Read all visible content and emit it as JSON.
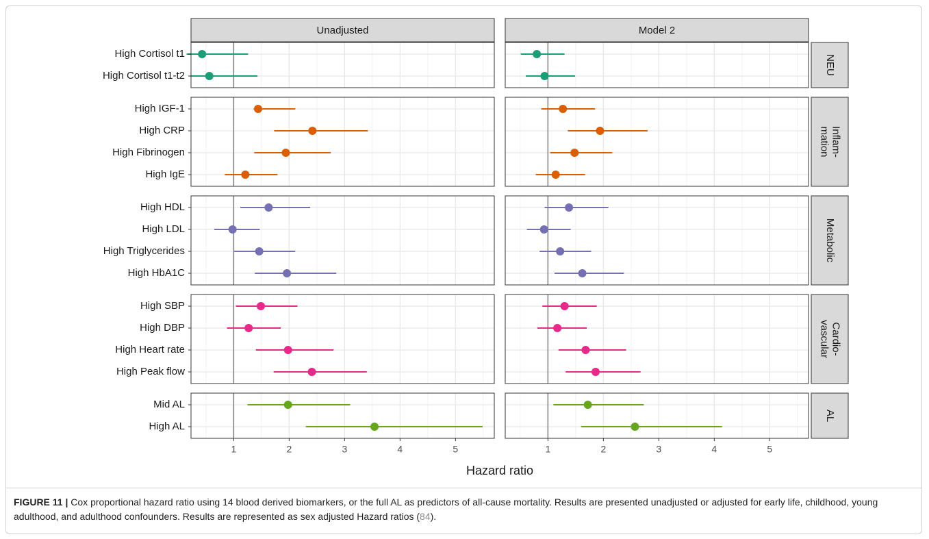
{
  "chart_data": {
    "type": "forest",
    "panels": [
      "Unadjusted",
      "Model 2"
    ],
    "xlabel": "Hazard ratio",
    "xlim": [
      0.23,
      5.7
    ],
    "xticks": [
      1,
      2,
      3,
      4,
      5
    ],
    "reference_line": 1,
    "grid": true,
    "groups": [
      {
        "label": [
          "NEU"
        ],
        "color": "#1b9e77",
        "categories": [
          "High Cortisol t1",
          "High Cortisol t1-t2"
        ],
        "estimates": [
          {
            "values": [
              0.43,
              0.56
            ],
            "lower": [
              0.15,
              0.22
            ],
            "upper": [
              1.26,
              1.43
            ]
          },
          {
            "values": [
              0.8,
              0.94
            ],
            "lower": [
              0.51,
              0.6
            ],
            "upper": [
              1.3,
              1.49
            ]
          }
        ]
      },
      {
        "label": [
          "Inflam-",
          "mation"
        ],
        "color": "#d95f02",
        "categories": [
          "High IGF-1",
          "High CRP",
          "High Fibrinogen",
          "High IgE"
        ],
        "estimates": [
          {
            "values": [
              1.44,
              2.42,
              1.94,
              1.21
            ],
            "lower": [
              1.36,
              1.73,
              1.37,
              0.84
            ],
            "upper": [
              2.11,
              3.42,
              2.75,
              1.79
            ]
          },
          {
            "values": [
              1.27,
              1.94,
              1.48,
              1.14
            ],
            "lower": [
              0.88,
              1.36,
              1.04,
              0.78
            ],
            "upper": [
              1.85,
              2.8,
              2.16,
              1.67
            ]
          }
        ]
      },
      {
        "label": [
          "Metabolic"
        ],
        "color": "#7570b3",
        "categories": [
          "High HDL",
          "High LDL",
          "High Triglycerides",
          "High HbA1C"
        ],
        "estimates": [
          {
            "values": [
              1.63,
              0.98,
              1.46,
              1.96
            ],
            "lower": [
              1.12,
              0.65,
              1.01,
              1.38
            ],
            "upper": [
              2.38,
              1.47,
              2.11,
              2.85
            ]
          },
          {
            "values": [
              1.38,
              0.93,
              1.22,
              1.62
            ],
            "lower": [
              0.94,
              0.62,
              0.85,
              1.12
            ],
            "upper": [
              2.09,
              1.41,
              1.78,
              2.37
            ]
          }
        ]
      },
      {
        "label": [
          "Cardio-",
          "vascular"
        ],
        "color": "#e7298a",
        "categories": [
          "High SBP",
          "High DBP",
          "High Heart rate",
          "High Peak flow"
        ],
        "estimates": [
          {
            "values": [
              1.49,
              1.27,
              1.98,
              2.41
            ],
            "lower": [
              1.04,
              0.88,
              1.4,
              1.72
            ],
            "upper": [
              2.15,
              1.85,
              2.8,
              3.4
            ]
          },
          {
            "values": [
              1.3,
              1.17,
              1.68,
              1.86
            ],
            "lower": [
              0.9,
              0.81,
              1.19,
              1.32
            ],
            "upper": [
              1.88,
              1.7,
              2.41,
              2.67
            ]
          }
        ]
      },
      {
        "label": [
          "AL"
        ],
        "color": "#66a61e",
        "categories": [
          "Mid AL",
          "High AL"
        ],
        "estimates": [
          {
            "values": [
              1.98,
              3.54
            ],
            "lower": [
              1.25,
              2.3
            ],
            "upper": [
              3.1,
              5.49
            ]
          },
          {
            "values": [
              1.72,
              2.57
            ],
            "lower": [
              1.1,
              1.6
            ],
            "upper": [
              2.73,
              4.14
            ]
          }
        ]
      }
    ]
  },
  "caption": {
    "label": "FIGURE 11 |",
    "text": "Cox proportional hazard ratio using 14 blood derived biomarkers, or the full AL as predictors of all-cause mortality. Results are presented unadjusted or adjusted for early life, childhood, young adulthood, and adulthood confounders. Results are represented as sex adjusted Hazard ratios (",
    "ref": "84",
    "end": ")."
  }
}
